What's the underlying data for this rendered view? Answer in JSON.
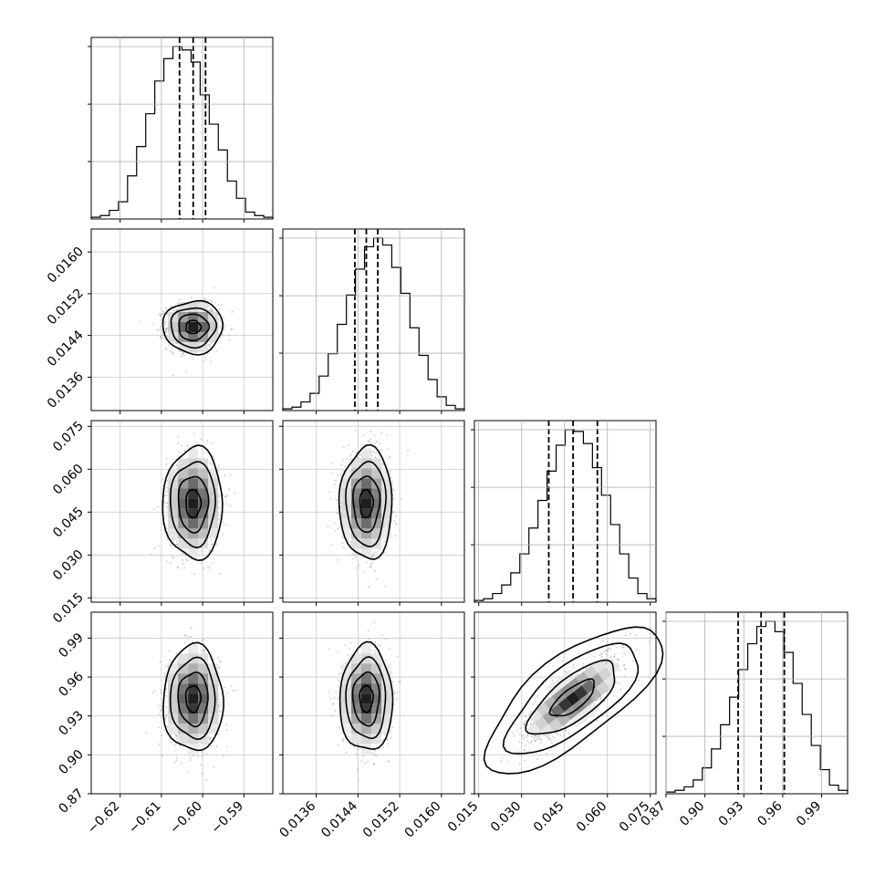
{
  "chart_data": {
    "type": "corner",
    "grid": true,
    "parameters": [
      {
        "range": [
          -0.627,
          -0.583
        ],
        "median": -0.6023,
        "q16": -0.6056,
        "q84": -0.5993,
        "ticks": [
          -0.62,
          -0.61,
          -0.6,
          -0.59
        ],
        "tick_labels": [
          "−0.62",
          "−0.61",
          "−0.60",
          "−0.59"
        ],
        "hist": [
          0.01,
          0.02,
          0.05,
          0.1,
          0.25,
          0.42,
          0.61,
          0.8,
          0.93,
          1.0,
          0.98,
          0.91,
          0.72,
          0.55,
          0.4,
          0.22,
          0.12,
          0.04,
          0.02,
          0.01
        ]
      },
      {
        "range": [
          0.01296,
          0.01644
        ],
        "median": 0.01456,
        "q16": 0.01434,
        "q84": 0.01478,
        "ticks": [
          0.0136,
          0.0144,
          0.0152,
          0.016
        ],
        "tick_labels": [
          "0.0136",
          "0.0144",
          "0.0152",
          "0.0160"
        ],
        "hist": [
          0.01,
          0.02,
          0.05,
          0.1,
          0.2,
          0.33,
          0.5,
          0.67,
          0.82,
          0.95,
          1.0,
          0.96,
          0.83,
          0.68,
          0.48,
          0.32,
          0.18,
          0.08,
          0.03,
          0.01
        ]
      },
      {
        "range": [
          0.0135,
          0.077
        ],
        "median": 0.048,
        "q16": 0.0395,
        "q84": 0.0565,
        "ticks": [
          0.015,
          0.03,
          0.045,
          0.06,
          0.075
        ],
        "tick_labels": [
          "0.015",
          "0.030",
          "0.045",
          "0.060",
          "0.075"
        ],
        "hist": [
          0.01,
          0.02,
          0.05,
          0.1,
          0.17,
          0.28,
          0.43,
          0.59,
          0.76,
          0.91,
          1.0,
          0.99,
          0.92,
          0.78,
          0.62,
          0.45,
          0.28,
          0.14,
          0.05,
          0.02
        ]
      },
      {
        "range": [
          0.87,
          1.01
        ],
        "median": 0.9433,
        "q16": 0.9256,
        "q84": 0.9612,
        "ticks": [
          0.87,
          0.9,
          0.93,
          0.96,
          0.99
        ],
        "tick_labels": [
          "0.87",
          "0.90",
          "0.93",
          "0.96",
          "0.99"
        ],
        "hist": [
          0.01,
          0.02,
          0.04,
          0.08,
          0.15,
          0.26,
          0.4,
          0.56,
          0.72,
          0.87,
          0.97,
          1.0,
          0.94,
          0.82,
          0.64,
          0.46,
          0.28,
          0.14,
          0.05,
          0.02
        ]
      }
    ],
    "correlations": {
      "2_0": 0.0,
      "2_1": 0.0,
      "1_0": 0.0,
      "3_0": 0.0,
      "3_1": 0.0,
      "3_2": 0.85
    }
  }
}
